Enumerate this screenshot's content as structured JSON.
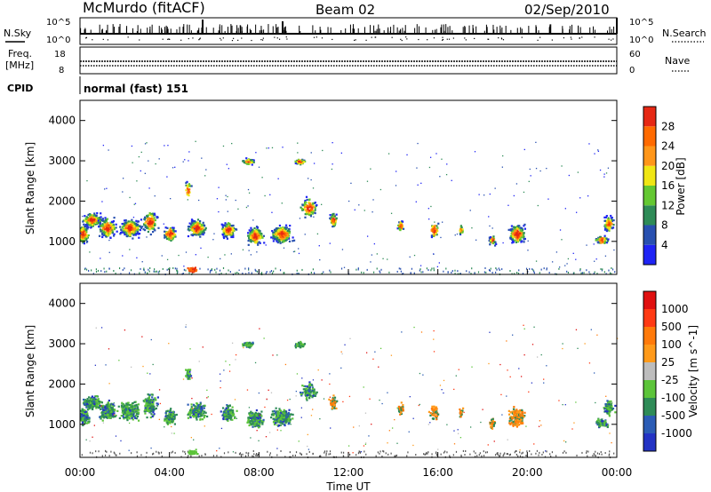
{
  "header": {
    "station": "McMurdo (fitACF)",
    "beam": "Beam 02",
    "date": "02/Sep/2010"
  },
  "top_panels": {
    "nsky_label": "N.Sky",
    "nsky_ticks": [
      "10^5",
      "10^0"
    ],
    "nsearch_label": "N.Search",
    "nsearch_ticks": [
      "10^5",
      "10^0"
    ],
    "freq_label_1": "Freq.",
    "freq_label_2": "[MHz]",
    "freq_ticks": [
      "18",
      "8"
    ],
    "nave_label": "Nave",
    "nave_ticks": [
      "60",
      "0"
    ],
    "cpid_label": "CPID",
    "cpid_value": "normal (fast) 151"
  },
  "chart_data": [
    {
      "type": "heatmap",
      "title": "",
      "ylabel": "Slant Range [km]",
      "xlabel": "",
      "ylim": [
        180,
        4500
      ],
      "yticks": [
        "1000",
        "2000",
        "3000",
        "4000"
      ],
      "colorbar_label": "Power [dB]",
      "colorbar_ticks": [
        "4",
        "8",
        "12",
        "16",
        "20",
        "24",
        "28"
      ],
      "colorbar_colors": [
        "#1f24f5",
        "#2850b0",
        "#2e8b57",
        "#64c832",
        "#f0e614",
        "#ff9619",
        "#ff6a00",
        "#e62814"
      ]
    },
    {
      "type": "heatmap",
      "title": "",
      "ylabel": "Slant Range [km]",
      "xlabel": "Time UT",
      "ylim": [
        180,
        4500
      ],
      "yticks": [
        "1000",
        "2000",
        "3000",
        "4000"
      ],
      "xticks": [
        "00:00",
        "04:00",
        "08:00",
        "12:00",
        "16:00",
        "20:00",
        "00:00"
      ],
      "colorbar_label": "Velocity [m s^-1]",
      "colorbar_ticks": [
        "1000",
        "500",
        "100",
        "25",
        "-25",
        "-100",
        "-500",
        "-1000"
      ],
      "colorbar_colors": [
        "#2333c4",
        "#2b5cb5",
        "#2e8b57",
        "#5cc43a",
        "#bdbdbd",
        "#ff9a1a",
        "#ff7a0a",
        "#ff3a14",
        "#e01010"
      ]
    }
  ]
}
